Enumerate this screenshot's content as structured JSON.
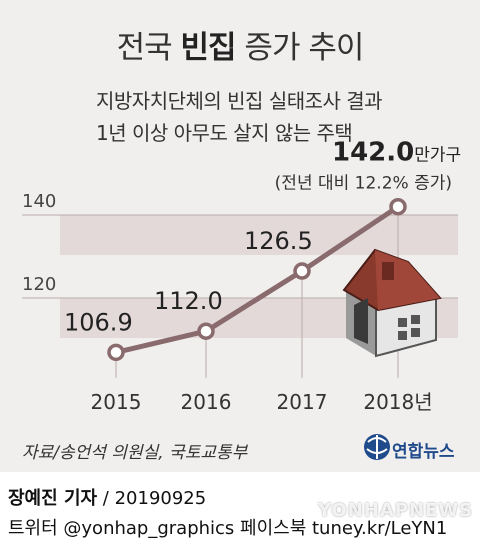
{
  "header": {
    "title_plain": "전국 ",
    "title_bold": "빈집",
    "title_rest": " 증가 추이",
    "subtitle_1": "지방자치단체의 빈집 실태조사 결과",
    "subtitle_2": "1년 이상 아무도 살지 않는 주택"
  },
  "chart_data": {
    "type": "line",
    "categories": [
      "2015",
      "2016",
      "2017",
      "2018년"
    ],
    "values": [
      106.9,
      112.0,
      126.5,
      142.0
    ],
    "value_labels": [
      "106.9",
      "112.0",
      "126.5",
      "142.0"
    ],
    "last_unit": "만가구",
    "annotation": "(전년 대비 12.2% 증가)",
    "yticks": [
      120,
      140
    ],
    "yticks_labels": [
      "120",
      "140"
    ],
    "ylim": [
      100,
      150
    ],
    "colors": {
      "line": "#8a6b6d",
      "marker": "#8a6b6d",
      "band": "#e3d9d9"
    }
  },
  "footer": {
    "source": "자료/송언석 의원실, 국토교통부",
    "logo_text": "연합뉴스",
    "reporter": "장예진 기자",
    "date": " / 20190925",
    "social": "트위터 @yonhap_graphics  페이스북 tuney.kr/LeYN1",
    "watermark": "YONHAPNEWS",
    "logo_icon": "yonhap-globe-icon"
  }
}
